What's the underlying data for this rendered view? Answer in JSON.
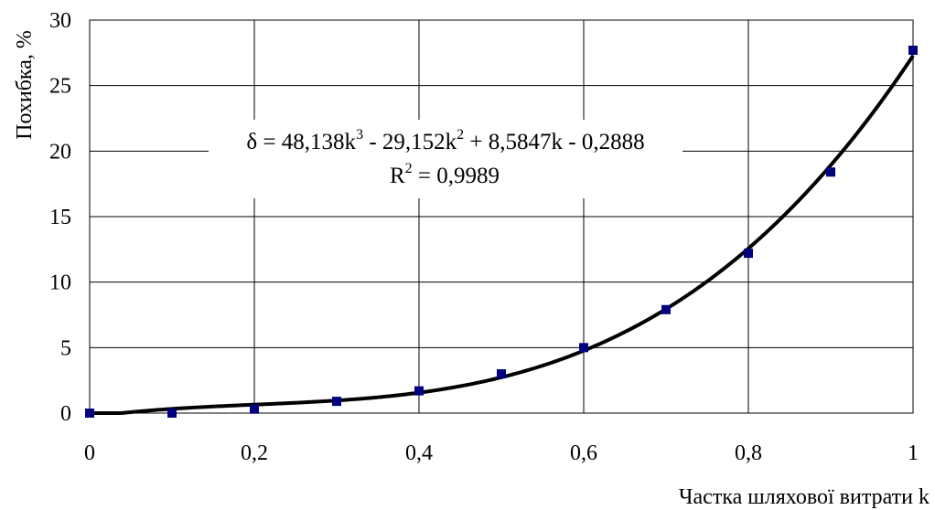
{
  "chart_data": {
    "type": "scatter",
    "ylabel": "Похибка, %",
    "xlabel": "Частка шляхової витрати k",
    "xlim": [
      0,
      1
    ],
    "ylim": [
      0,
      30
    ],
    "x_ticks": [
      0,
      0.2,
      0.4,
      0.6,
      0.8,
      1
    ],
    "x_tick_labels": [
      "0",
      "0,2",
      "0,4",
      "0,6",
      "0,8",
      "1"
    ],
    "y_ticks": [
      0,
      5,
      10,
      15,
      20,
      25,
      30
    ],
    "y_tick_labels": [
      "0",
      "5",
      "10",
      "15",
      "20",
      "25",
      "30"
    ],
    "grid": true,
    "legend": "none",
    "marker_color": "#000080",
    "series": [
      {
        "x": [
          0,
          0.1,
          0.2,
          0.3,
          0.4,
          0.5,
          0.6,
          0.7,
          0.8,
          0.9,
          1.0
        ],
        "y": [
          0,
          0,
          0.3,
          0.9,
          1.7,
          3.0,
          5.0,
          7.9,
          12.2,
          18.4,
          27.7
        ]
      }
    ],
    "trendline": {
      "type": "polynomial",
      "coefficients": [
        48.138,
        -29.152,
        8.5847,
        -0.2888
      ],
      "color": "#000000"
    },
    "annotation": {
      "eq_a": "δ = 48,138k",
      "eq_a_sup": "3",
      "eq_b": " - 29,152k",
      "eq_b_sup": "2",
      "eq_c": " + 8,5847k - 0,2888",
      "r2_a": "R",
      "r2_sup": "2",
      "r2_b": " = 0,9989"
    }
  }
}
